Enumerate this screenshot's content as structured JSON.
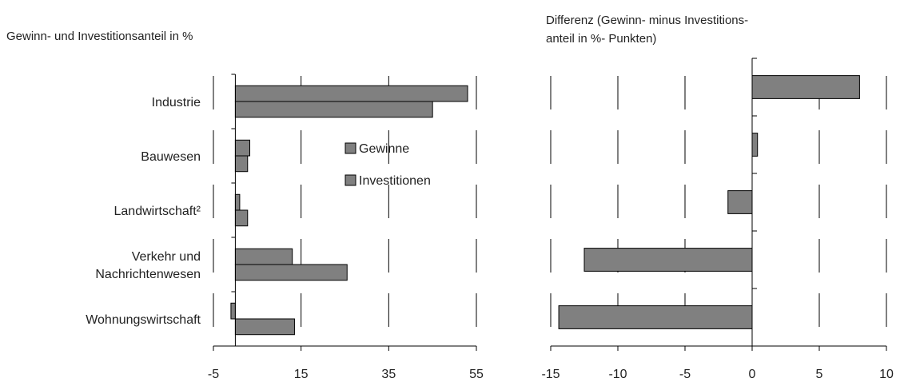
{
  "chart_data": [
    {
      "type": "bar",
      "orientation": "horizontal",
      "title": "Gewinn- und Investitionsanteil in %",
      "categories": [
        "Industrie",
        "Bauwesen",
        "Landwirtschaft²",
        "Verkehr und Nachrichtenwesen",
        "Wohnungswirtschaft"
      ],
      "category_lines": [
        [
          "Industrie"
        ],
        [
          "Bauwesen"
        ],
        [
          "Landwirtschaft²"
        ],
        [
          "Verkehr und",
          "Nachrichtenwesen"
        ],
        [
          "Wohnungswirtschaft"
        ]
      ],
      "series": [
        {
          "name": "Gewinne",
          "values": [
            53,
            3.3,
            1,
            13,
            -1
          ]
        },
        {
          "name": "Investitionen",
          "values": [
            45,
            2.8,
            2.8,
            25.5,
            13.5
          ]
        }
      ],
      "xlim": [
        -5,
        55
      ],
      "xticks": [
        -5,
        15,
        35,
        55
      ],
      "grid": "vertical",
      "legend": "inside-center",
      "bar_color": "#808080"
    },
    {
      "type": "bar",
      "orientation": "horizontal",
      "title": "Differenz (Gewinn- minus Investitions- anteil in %- Punkten)",
      "title_lines": [
        "Differenz (Gewinn- minus Investitions-",
        "anteil in %- Punkten)"
      ],
      "categories": [
        "Industrie",
        "Bauwesen",
        "Landwirtschaft²",
        "Verkehr und Nachrichtenwesen",
        "Wohnungswirtschaft"
      ],
      "values": [
        8,
        0.4,
        -1.8,
        -12.5,
        -14.4
      ],
      "xlim": [
        -15,
        10
      ],
      "xticks": [
        -15,
        -10,
        -5,
        0,
        5,
        10
      ],
      "grid": "vertical",
      "bar_color": "#808080"
    }
  ]
}
